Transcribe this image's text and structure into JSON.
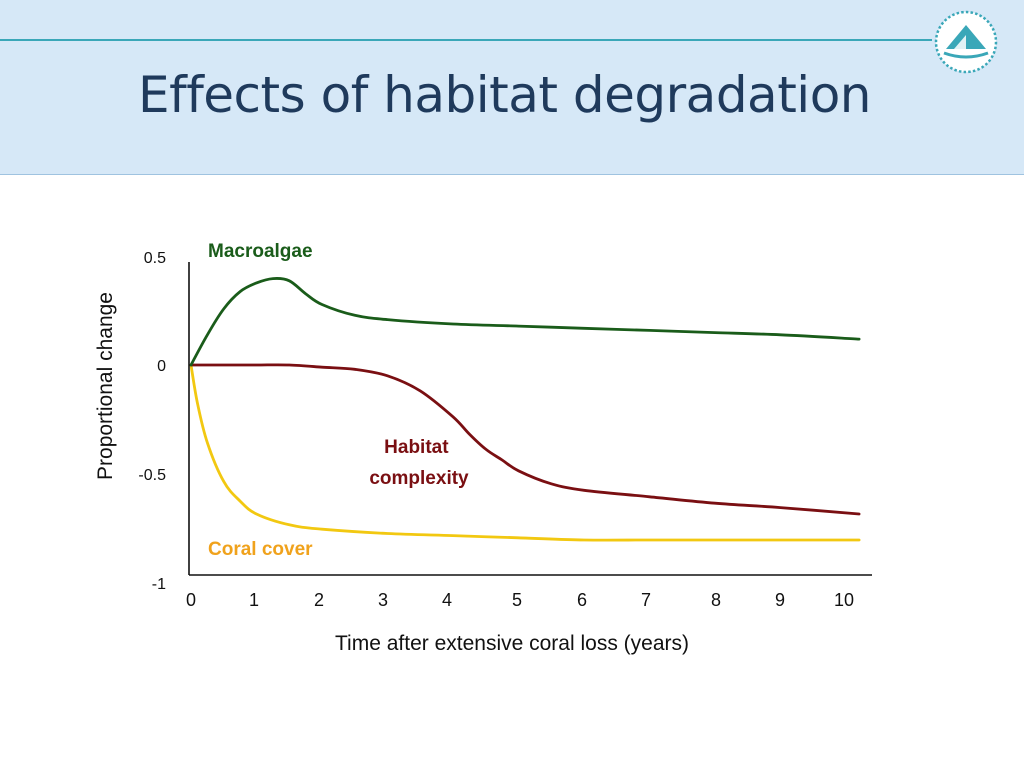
{
  "slide": {
    "title": "Effects of habitat degradation"
  },
  "icons": {
    "logo": "sailboat-logo-icon"
  },
  "colors": {
    "header_bg": "#d6e8f7",
    "rule": "#3aa7b8",
    "title": "#1f3a5c",
    "macroalgae": "#1a5c1a",
    "habitat_complexity": "#7a0f12",
    "coral_cover": "#f2c811",
    "coral_label": "#f0a21c"
  },
  "chart_data": {
    "type": "line",
    "title": "",
    "xlabel": "Time after extensive coral loss (years)",
    "ylabel": "Proportional change",
    "xlim": [
      0,
      10
    ],
    "ylim": [
      -1,
      0.5
    ],
    "x_ticks": [
      "0",
      "1",
      "2",
      "3",
      "4",
      "5",
      "6",
      "7",
      "8",
      "9",
      "10"
    ],
    "y_ticks": [
      "0.5",
      "0",
      "-0.5",
      "-1"
    ],
    "grid": false,
    "legend": "inline labels",
    "series": [
      {
        "name": "Macroalgae",
        "color": "#1a5c1a",
        "x": [
          0,
          0.25,
          0.5,
          0.75,
          1,
          1.25,
          1.5,
          1.75,
          2,
          2.5,
          3,
          4,
          5,
          6,
          7,
          8,
          9,
          10.2
        ],
        "y": [
          0,
          0.14,
          0.26,
          0.34,
          0.38,
          0.4,
          0.39,
          0.33,
          0.28,
          0.23,
          0.21,
          0.19,
          0.18,
          0.17,
          0.16,
          0.15,
          0.14,
          0.12
        ]
      },
      {
        "name": "Habitat complexity",
        "color": "#7a0f12",
        "x": [
          0,
          0.5,
          1,
          1.5,
          2,
          2.5,
          3,
          3.5,
          4,
          4.25,
          4.5,
          4.75,
          5,
          5.5,
          6,
          7,
          8,
          9,
          10.2
        ],
        "y": [
          0,
          0,
          0,
          0,
          -0.01,
          -0.02,
          -0.05,
          -0.12,
          -0.24,
          -0.32,
          -0.39,
          -0.44,
          -0.49,
          -0.55,
          -0.58,
          -0.61,
          -0.64,
          -0.66,
          -0.69
        ]
      },
      {
        "name": "Coral cover",
        "color": "#f2c811",
        "x": [
          0,
          0.1,
          0.25,
          0.5,
          0.75,
          1,
          1.5,
          2,
          3,
          4,
          5,
          6,
          7,
          8,
          9,
          10.2
        ],
        "y": [
          0,
          -0.18,
          -0.36,
          -0.54,
          -0.63,
          -0.69,
          -0.74,
          -0.76,
          -0.78,
          -0.79,
          -0.8,
          -0.81,
          -0.81,
          -0.81,
          -0.81,
          -0.81
        ]
      }
    ]
  }
}
